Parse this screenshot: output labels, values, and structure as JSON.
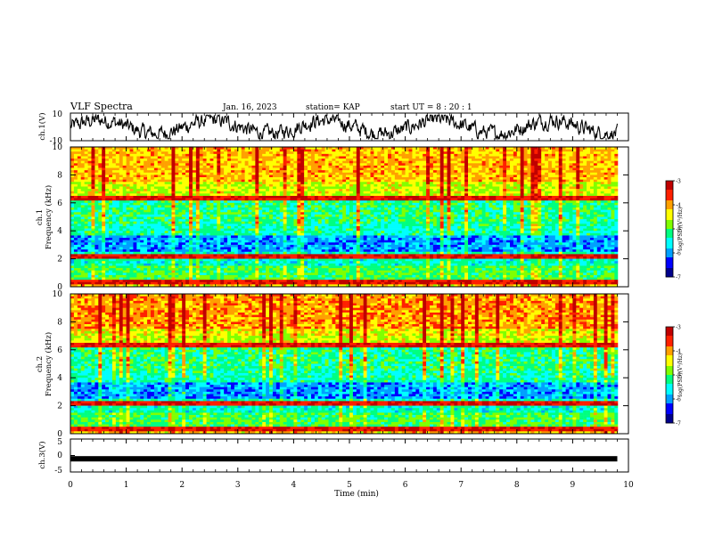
{
  "header": {
    "title": "VLF Spectra",
    "date": "Jan. 16, 2023",
    "station": "station= KAP",
    "start": "start  UT =   8 : 20 : 1"
  },
  "chart_data": [
    {
      "type": "line",
      "name": "waveform-ch1",
      "ylabel": "ch.1(V)",
      "ylim": [
        -10,
        10
      ],
      "yticks": [
        "10",
        "-10"
      ],
      "xlim": [
        0,
        10
      ],
      "description_values": "noisy waveform oscillating roughly between -8 and 8 V over 0-9.8 min"
    },
    {
      "type": "heatmap",
      "name": "spectrogram-ch1",
      "ylabel": "ch.1",
      "ylabel2": "Frequency (kHz)",
      "ylim": [
        0,
        10
      ],
      "yticks": [
        "0",
        "2",
        "4",
        "6",
        "8",
        "10"
      ],
      "xlim": [
        0,
        10
      ],
      "colorbar": {
        "label": "log(PSD)(V²/Hz)",
        "range": [
          -7,
          -3
        ],
        "ticks": [
          "-3",
          "-4",
          "-5",
          "-6",
          "-7"
        ]
      }
    },
    {
      "type": "heatmap",
      "name": "spectrogram-ch2",
      "ylabel": "ch.2",
      "ylabel2": "Frequency (kHz)",
      "ylim": [
        0,
        10
      ],
      "yticks": [
        "0",
        "2",
        "4",
        "6",
        "8",
        "10"
      ],
      "xlim": [
        0,
        10
      ],
      "colorbar": {
        "label": "log(PSD)(V²/Hz)",
        "range": [
          -7,
          -3
        ],
        "ticks": [
          "-3",
          "-4",
          "-5",
          "-6",
          "-7"
        ]
      }
    },
    {
      "type": "line",
      "name": "waveform-ch3",
      "ylabel": "ch.3(V)",
      "ylim": [
        -5,
        5
      ],
      "yticks": [
        "5",
        "0",
        "-5"
      ],
      "xlim": [
        0,
        10
      ],
      "xticks": [
        "0",
        "1",
        "2",
        "3",
        "4",
        "5",
        "6",
        "7",
        "8",
        "9",
        "10"
      ],
      "xlabel": "Time (min)",
      "level": -1
    }
  ],
  "colors": {
    "scale": [
      "#00008b",
      "#0000ff",
      "#00a0ff",
      "#00ffff",
      "#00ff80",
      "#80ff00",
      "#ffff00",
      "#ffa000",
      "#ff2000",
      "#c00000"
    ],
    "axis": "#000000"
  }
}
